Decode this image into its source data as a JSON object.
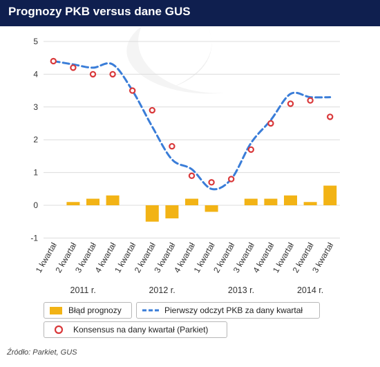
{
  "header": {
    "title": "Prognozy PKB versus dane GUS"
  },
  "chart_data": {
    "type": "bar",
    "categories": [
      "1 kwartał",
      "2 kwartał",
      "3 kwartał",
      "4 kwartał",
      "1 kwartał",
      "2 kwartał",
      "3 kwartał",
      "4 kwartał",
      "1 kwartał",
      "2 kwartał",
      "3 kwartał",
      "4 kwartał",
      "1 kwartał",
      "2 kwartał",
      "3 kwartał"
    ],
    "years": [
      "2011 r.",
      "2012 r.",
      "2013 r.",
      "2014 r."
    ],
    "ylim": [
      -1,
      5
    ],
    "yticks": [
      "-1",
      "0",
      "1",
      "2",
      "3",
      "4",
      "5"
    ],
    "series": [
      {
        "name": "Błąd prognozy",
        "type": "bar",
        "color": "#f2b315",
        "values": [
          0.0,
          0.1,
          0.2,
          0.3,
          0.0,
          -0.5,
          -0.4,
          0.2,
          -0.2,
          0.0,
          0.2,
          0.2,
          0.3,
          0.1,
          0.6
        ]
      },
      {
        "name": "Pierwszy odczyt PKB za dany kwartał",
        "type": "line",
        "color": "#3a7dd8",
        "values": [
          4.4,
          4.3,
          4.2,
          4.3,
          3.5,
          2.4,
          1.4,
          1.1,
          0.5,
          0.8,
          1.9,
          2.6,
          3.4,
          3.3,
          3.3
        ]
      },
      {
        "name": "Konsensus na dany kwartał (Parkiet)",
        "type": "scatter",
        "color": "#d9383a",
        "values": [
          4.4,
          4.2,
          4.0,
          4.0,
          3.5,
          2.9,
          1.8,
          0.9,
          0.7,
          0.8,
          1.7,
          2.5,
          3.1,
          3.2,
          2.7
        ]
      }
    ],
    "grid": "horizontal"
  },
  "legend": {
    "bar_label": "Błąd prognozy",
    "line_label": "Pierwszy odczyt PKB za dany kwartał",
    "dot_label": "Konsensus na dany kwartał (Parkiet)"
  },
  "footer": {
    "source": "Źródło: Parkiet, GUS"
  }
}
